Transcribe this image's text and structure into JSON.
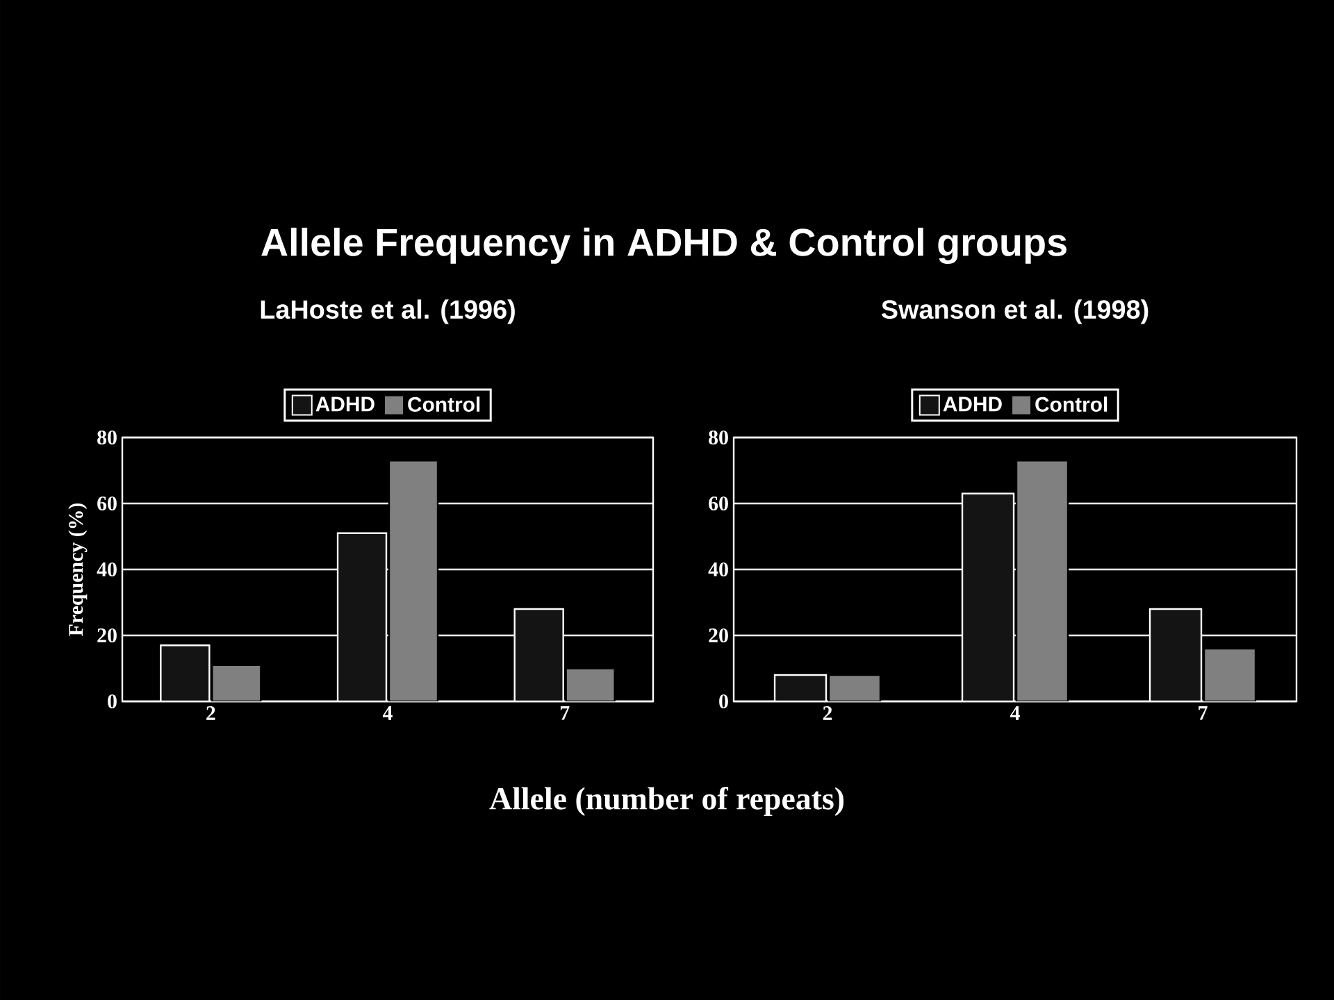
{
  "chart_data": [
    {
      "type": "bar",
      "title": "Allele Frequency in ADHD & Control groups",
      "subtitle": "LaHoste et al. (1996)",
      "xlabel": "Allele (number of repeats)",
      "ylabel": "Frequency (%)",
      "categories": [
        "2",
        "4",
        "7"
      ],
      "series": [
        {
          "name": "ADHD",
          "color": "#141414",
          "values": [
            17,
            51,
            28
          ]
        },
        {
          "name": "Control",
          "color": "#808080",
          "values": [
            11,
            73,
            10
          ]
        }
      ],
      "ylim": [
        0,
        80
      ],
      "yticks": [
        0,
        20,
        40,
        60,
        80
      ],
      "grid": "y",
      "legend": "top"
    },
    {
      "type": "bar",
      "subtitle": "Swanson et al. (1998)",
      "categories": [
        "2",
        "4",
        "7"
      ],
      "series": [
        {
          "name": "ADHD",
          "color": "#141414",
          "values": [
            8,
            63,
            28
          ]
        },
        {
          "name": "Control",
          "color": "#808080",
          "values": [
            8,
            73,
            16
          ]
        }
      ],
      "ylim": [
        0,
        80
      ],
      "yticks": [
        0,
        20,
        40,
        60,
        80
      ],
      "grid": "y",
      "legend": "top"
    }
  ]
}
